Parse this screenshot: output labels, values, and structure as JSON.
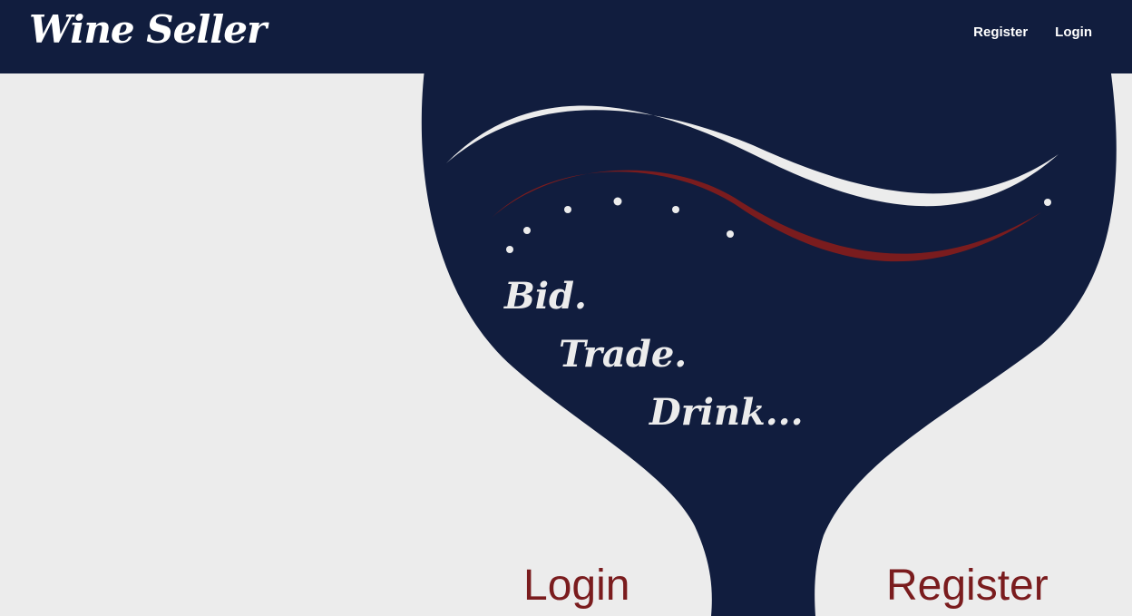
{
  "header": {
    "brand": "Wine Seller",
    "nav": {
      "register_label": "Register",
      "login_label": "Login"
    }
  },
  "hero": {
    "tagline": [
      "Bid.",
      "Trade.",
      "Drink..."
    ]
  },
  "actions": {
    "login_label": "Login",
    "register_label": "Register"
  },
  "colors": {
    "navy": "#111d3e",
    "background": "#ececec",
    "wine": "#7a1c1e",
    "white": "#ffffff"
  },
  "icons": {
    "hero_art": "wine-glass-icon"
  }
}
